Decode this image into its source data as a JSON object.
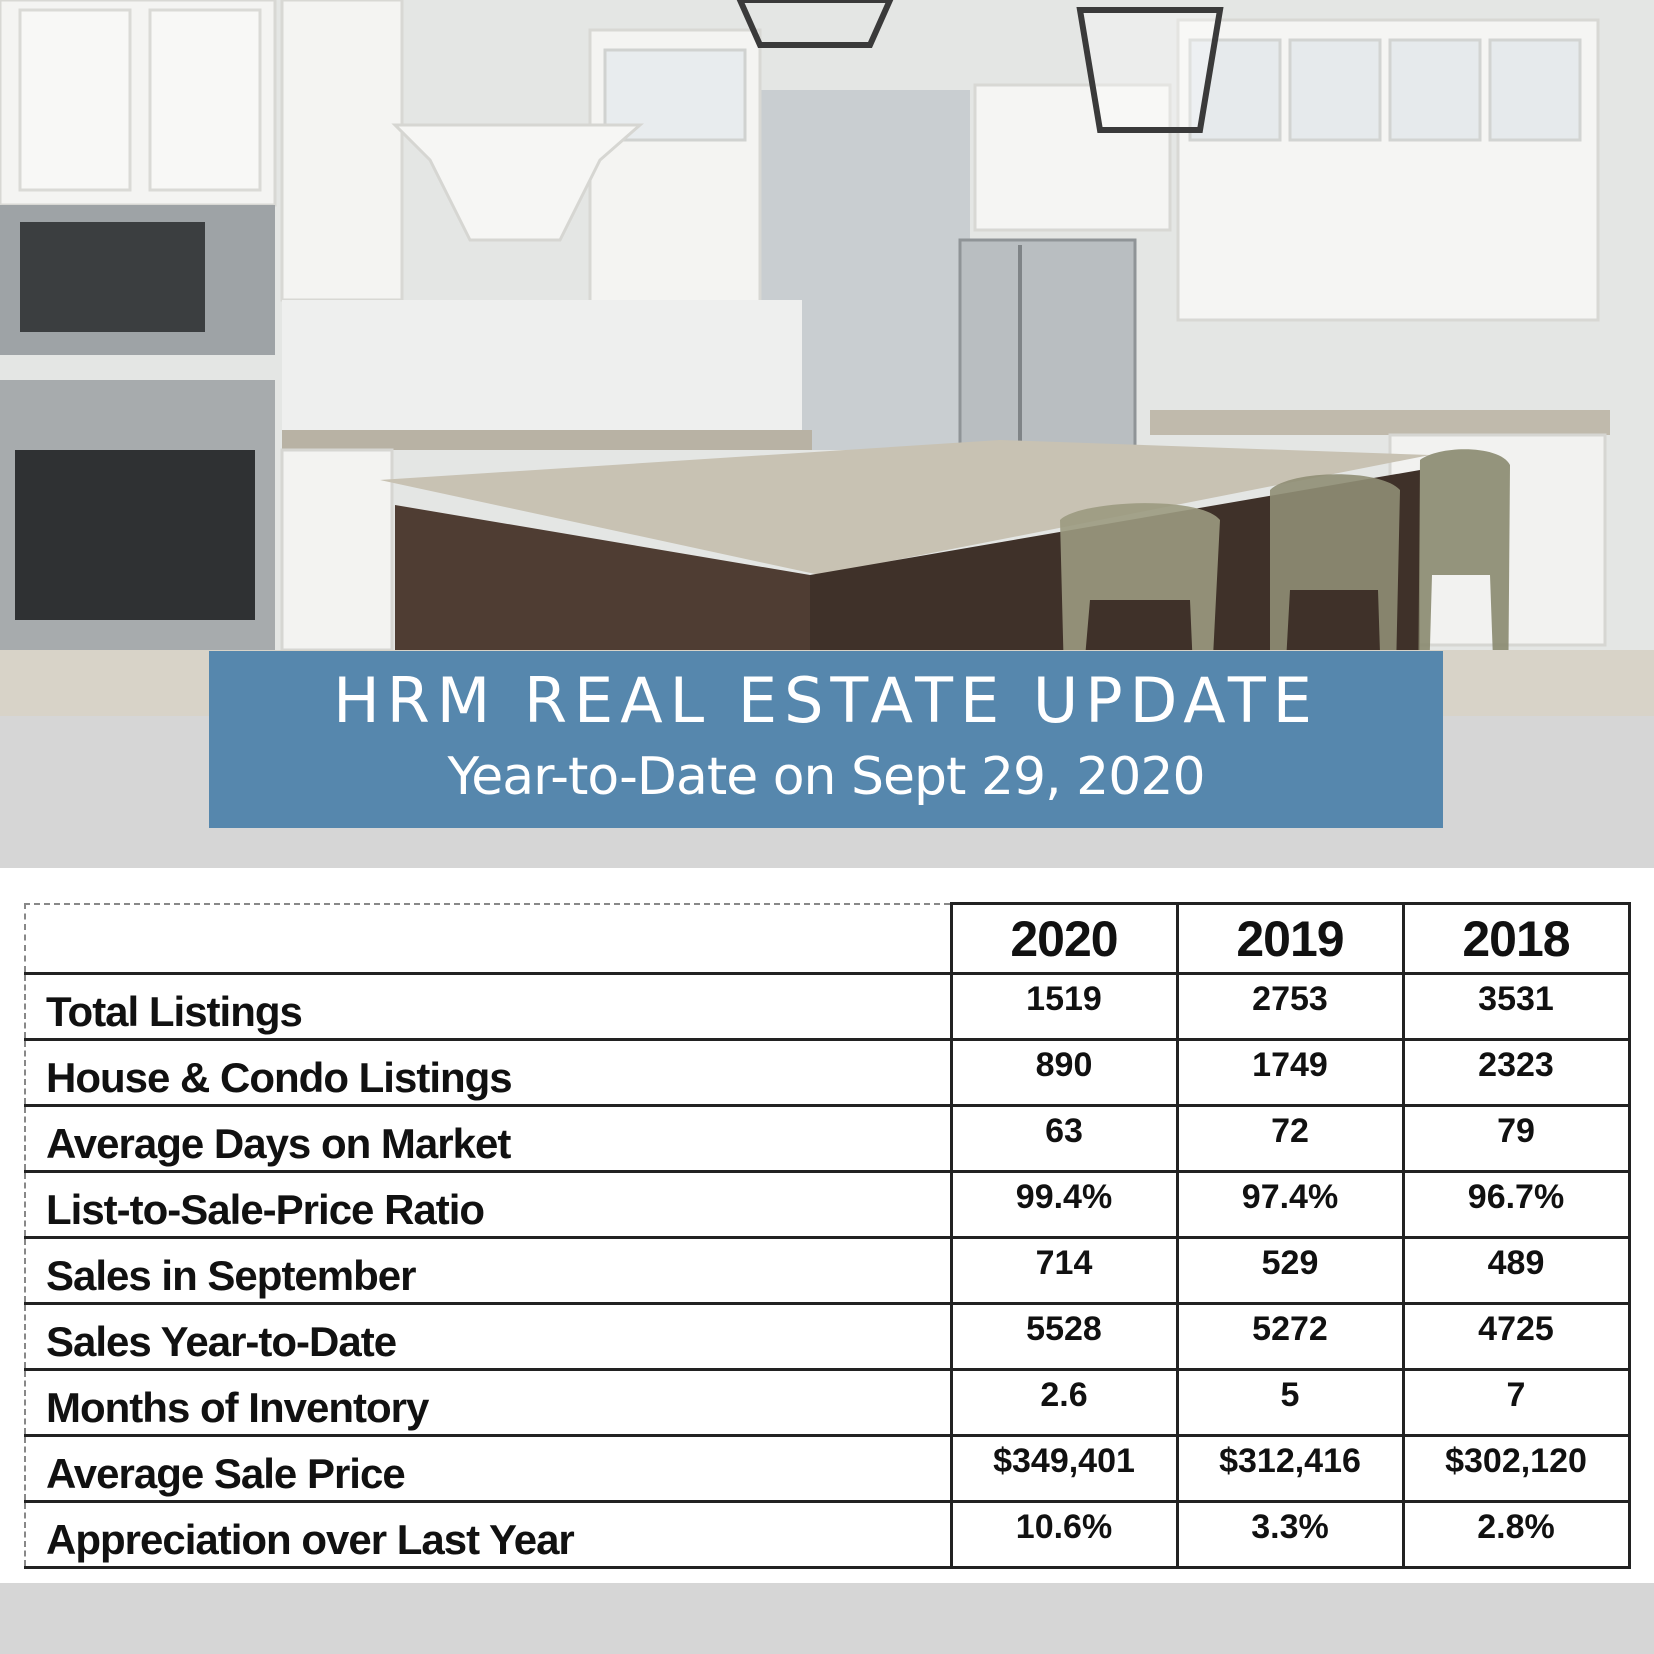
{
  "banner": {
    "title": "HRM REAL ESTATE UPDATE",
    "subtitle": "Year-to-Date on Sept 29, 2020",
    "background_color": "#5687ad"
  },
  "table": {
    "years": [
      "2020",
      "2019",
      "2018"
    ],
    "rows": [
      {
        "label": "Total Listings",
        "values": [
          "1519",
          "2753",
          "3531"
        ]
      },
      {
        "label": "House & Condo Listings",
        "values": [
          "890",
          "1749",
          "2323"
        ]
      },
      {
        "label": "Average Days on Market",
        "values": [
          "63",
          "72",
          "79"
        ]
      },
      {
        "label": "List-to-Sale-Price Ratio",
        "values": [
          "99.4%",
          "97.4%",
          "96.7%"
        ]
      },
      {
        "label": "Sales in September",
        "values": [
          "714",
          "529",
          "489"
        ]
      },
      {
        "label": "Sales Year-to-Date",
        "values": [
          "5528",
          "5272",
          "4725"
        ]
      },
      {
        "label": "Months of Inventory",
        "values": [
          "2.6",
          "5",
          "7"
        ]
      },
      {
        "label": "Average Sale Price",
        "values": [
          "$349,401",
          "$312,416",
          "$302,120"
        ]
      },
      {
        "label": "Appreciation over Last Year",
        "values": [
          "10.6%",
          "3.3%",
          "2.8%"
        ]
      }
    ]
  }
}
